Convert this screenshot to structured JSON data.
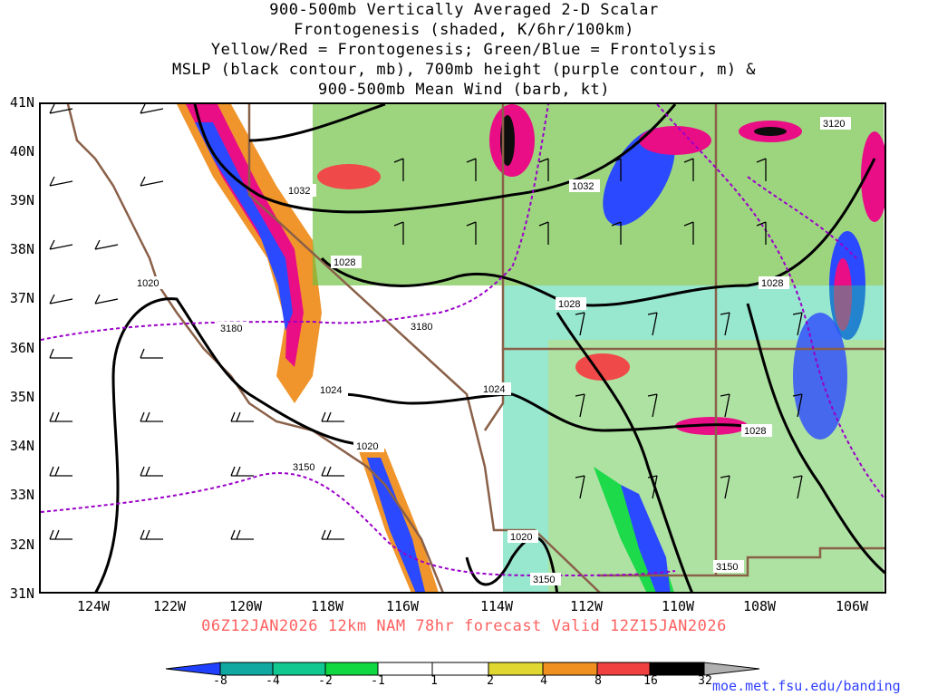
{
  "title_lines": [
    "900-500mb Vertically Averaged 2-D Scalar",
    "Frontogenesis (shaded, K/6hr/100km)",
    "Yellow/Red = Frontogenesis;  Green/Blue = Frontolysis",
    "MSLP (black contour, mb), 700mb height (purple contour, m) &",
    "900-500mb Mean Wind (barb, kt)"
  ],
  "latitude_labels": [
    "41N",
    "40N",
    "39N",
    "38N",
    "37N",
    "36N",
    "35N",
    "34N",
    "33N",
    "32N",
    "31N"
  ],
  "longitude_labels": [
    "124W",
    "122W",
    "120W",
    "118W",
    "116W",
    "114W",
    "112W",
    "110W",
    "108W",
    "106W"
  ],
  "valid_line": "06Z12JAN2026 12km NAM 78hr forecast Valid 12Z15JAN2026",
  "colorbar": {
    "labels": [
      "-8",
      "-4",
      "-2",
      "-1",
      "1",
      "2",
      "4",
      "8",
      "16",
      "32"
    ],
    "colors": [
      "#2040ff",
      "#10a8a0",
      "#10c890",
      "#10d840",
      "#ffffff",
      "#e0d830",
      "#f09020",
      "#f04040",
      "#e80080",
      "#000000"
    ],
    "over_color": "#b0b0b0"
  },
  "contour_labels": {
    "mslp": [
      "1032",
      "1032",
      "1028",
      "1020",
      "1028",
      "1024",
      "1024",
      "1020",
      "1028",
      "1028",
      "1020"
    ],
    "height_700mb": [
      "3180",
      "3180",
      "3150",
      "3150",
      "3150",
      "3120"
    ]
  },
  "credit": "moe.met.fsu.edu/banding"
}
